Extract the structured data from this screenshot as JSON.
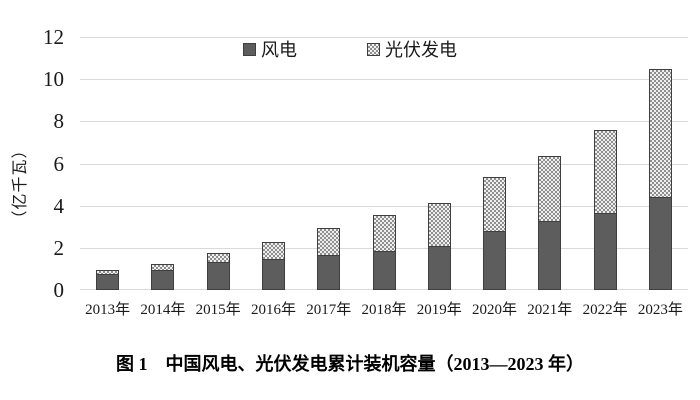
{
  "caption": "图 1　中国风电、光伏发电累计装机容量（2013—2023 年）",
  "colors": {
    "wind_fill": "#5d5d5d",
    "bar_border": "#3f3f3f",
    "solar_pattern_dark": "#8f8f8f",
    "solar_pattern_light": "#efefef",
    "gridline": "#d9d9d9",
    "text": "#1a1a1a"
  },
  "chart_data": {
    "type": "bar",
    "stacked": true,
    "title": "",
    "xlabel": "",
    "ylabel": "（亿千瓦）",
    "ylim": [
      0,
      12
    ],
    "yticks": [
      0,
      2,
      4,
      6,
      8,
      10,
      12
    ],
    "grid": "horizontal",
    "legend_position": "top-center",
    "categories": [
      "2013年",
      "2014年",
      "2015年",
      "2016年",
      "2017年",
      "2018年",
      "2019年",
      "2020年",
      "2021年",
      "2022年",
      "2023年"
    ],
    "series": [
      {
        "name": "风电",
        "style": "solid-dark-gray",
        "values": [
          0.77,
          0.96,
          1.31,
          1.49,
          1.64,
          1.84,
          2.1,
          2.81,
          3.28,
          3.65,
          4.41
        ]
      },
      {
        "name": "光伏发电",
        "style": "checker-pattern",
        "values": [
          0.19,
          0.28,
          0.43,
          0.77,
          1.3,
          1.74,
          2.04,
          2.53,
          3.06,
          3.93,
          6.09
        ]
      }
    ],
    "totals": [
      0.96,
      1.24,
      1.74,
      2.26,
      2.94,
      3.58,
      4.14,
      5.34,
      6.34,
      7.58,
      10.5
    ]
  }
}
